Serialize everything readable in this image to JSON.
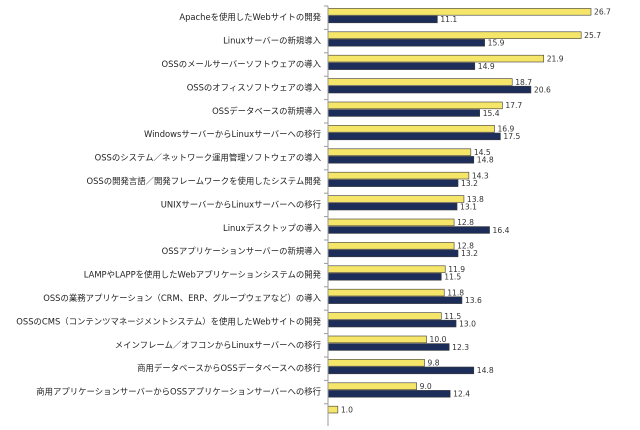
{
  "chart_data": {
    "type": "bar",
    "orientation": "horizontal",
    "categories": [
      "Apacheを使用したWebサイトの開発",
      "Linuxサーバーの新規導入",
      "OSSのメールサーバーソフトウェアの導入",
      "OSSのオフィスソフトウェアの導入",
      "OSSデータベースの新規導入",
      "WindowsサーバーからLinuxサーバーへの移行",
      "OSSのシステム／ネットワーク運用管理ソフトウェアの導入",
      "OSSの開発言語／開発フレームワークを使用したシステム開発",
      "UNIXサーバーからLinuxサーバーへの移行",
      "Linuxデスクトップの導入",
      "OSSアプリケーションサーバーの新規導入",
      "LAMPやLAPPを使用したWebアプリケーションシステムの開発",
      "OSSの業務アプリケーション（CRM、ERP、グループウェアなど）の導入",
      "OSSのCMS（コンテンツマネージメントシステム）を使用したWebサイトの開発",
      "メインフレーム／オフコンからLinuxサーバーへの移行",
      "商用データベースからOSSデータベースへの移行",
      "商用アプリケーションサーバーからOSSアプリケーションサーバーへの移行",
      ""
    ],
    "series": [
      {
        "color": "#f5e66a",
        "values": [
          26.7,
          25.7,
          21.9,
          18.7,
          17.7,
          16.9,
          14.5,
          14.3,
          13.8,
          12.8,
          12.8,
          11.9,
          11.8,
          11.5,
          10.0,
          9.8,
          9.0,
          1.0
        ]
      },
      {
        "color": "#1c2d5a",
        "values": [
          11.1,
          15.9,
          14.9,
          20.6,
          15.4,
          17.5,
          14.8,
          13.2,
          13.1,
          16.4,
          13.2,
          11.5,
          13.6,
          13.0,
          12.3,
          14.8,
          12.4,
          null
        ]
      }
    ],
    "xlim": [
      0,
      30
    ],
    "grid": false,
    "legend": "none",
    "axis_color": "#9a9a9a"
  }
}
